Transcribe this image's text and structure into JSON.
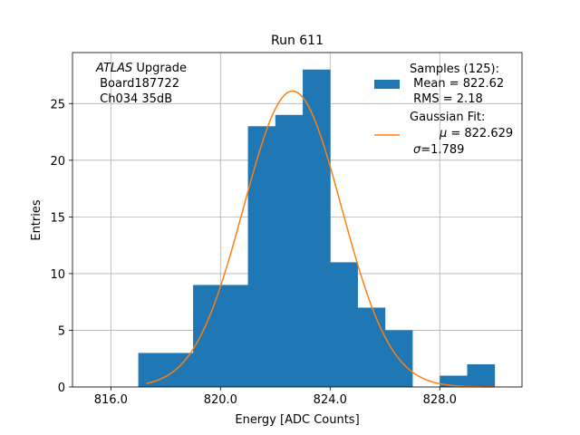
{
  "chart_data": {
    "type": "bar",
    "title": "Run 611",
    "xlabel": "Energy [ADC Counts]",
    "ylabel": "Entries",
    "xlim": [
      814.6,
      831.0
    ],
    "ylim": [
      0,
      29.5
    ],
    "xticks": [
      816,
      820,
      824,
      828
    ],
    "xtick_labels": [
      "816.0",
      "820.0",
      "824.0",
      "828.0"
    ],
    "yticks": [
      0,
      5,
      10,
      15,
      20,
      25
    ],
    "ytick_labels": [
      "0",
      "5",
      "10",
      "15",
      "20",
      "25"
    ],
    "grid": true,
    "bar_color": "#1f77b4",
    "fit_color": "#ff7f0e",
    "histogram": {
      "bin_edges": [
        817,
        818,
        819,
        820,
        821,
        822,
        823,
        824,
        825,
        826,
        827,
        828,
        829,
        830
      ],
      "counts": [
        3,
        3,
        9,
        9,
        23,
        24,
        28,
        11,
        7,
        5,
        0,
        1,
        2
      ]
    },
    "fit": {
      "mean": 822.629,
      "sigma": 1.789,
      "amplitude": 26.1,
      "x_range": [
        817.3,
        830.0
      ]
    },
    "annotation": {
      "italic": "ATLAS",
      "line1_rest": " Upgrade",
      "line2": " Board187722",
      "line3": " Ch034 35dB"
    },
    "legend": {
      "placement": "top-right",
      "samples": [
        "Samples (125):",
        " Mean = 822.62",
        " RMS = 2.18"
      ],
      "fit_title": "Gaussian Fit:",
      "fit_mu_symbol": "μ",
      "fit_mu_value": " = 822.629",
      "fit_sigma_symbol": "σ",
      "fit_sigma_value": "=1.789"
    }
  }
}
